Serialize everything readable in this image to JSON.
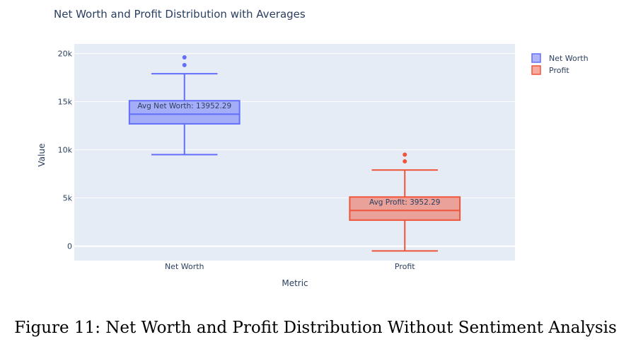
{
  "chart_data": {
    "type": "box",
    "title": "Net Worth and Profit Distribution with Averages",
    "xlabel": "Metric",
    "ylabel": "Value",
    "ylim": [
      -1500,
      21000
    ],
    "yticks": [
      {
        "value": 0,
        "label": "0"
      },
      {
        "value": 5000,
        "label": "5k"
      },
      {
        "value": 10000,
        "label": "10k"
      },
      {
        "value": 15000,
        "label": "15k"
      },
      {
        "value": 20000,
        "label": "20k"
      }
    ],
    "categories": [
      "Net Worth",
      "Profit"
    ],
    "grid": true,
    "legend_position": "top-right",
    "series": [
      {
        "name": "Net Worth",
        "color": "#636efa",
        "whisker_low": 9500,
        "q1": 12700,
        "median": 13700,
        "q3": 15100,
        "whisker_high": 17900,
        "outliers": [
          18800,
          19600
        ],
        "annotation": "Avg Net Worth: 13952.29"
      },
      {
        "name": "Profit",
        "color": "#ef553b",
        "whisker_low": -500,
        "q1": 2700,
        "median": 3700,
        "q3": 5100,
        "whisker_high": 7900,
        "outliers": [
          8800,
          9500
        ],
        "annotation": "Avg Profit: 3952.29"
      }
    ]
  },
  "caption": "Figure 11: Net Worth and Profit Distribution Without Sentiment Analysis"
}
